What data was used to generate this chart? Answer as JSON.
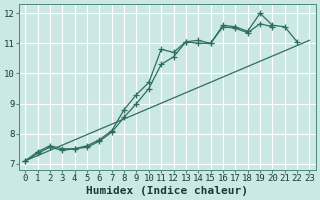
{
  "xlabel": "Humidex (Indice chaleur)",
  "bg_color": "#cce8e5",
  "grid_color": "#ffffff",
  "line_color": "#2e6e62",
  "xlim_min": -0.5,
  "xlim_max": 23.5,
  "ylim_min": 6.8,
  "ylim_max": 12.3,
  "xticks": [
    0,
    1,
    2,
    3,
    4,
    5,
    6,
    7,
    8,
    9,
    10,
    11,
    12,
    13,
    14,
    15,
    16,
    17,
    18,
    19,
    20,
    21,
    22,
    23
  ],
  "yticks": [
    7,
    8,
    9,
    10,
    11,
    12
  ],
  "line1_x": [
    0,
    1,
    2,
    3,
    4,
    5,
    6,
    7,
    8,
    9,
    10,
    11,
    12,
    13,
    14,
    15,
    16,
    17,
    18,
    19,
    20,
    21,
    22
  ],
  "line1_y": [
    7.1,
    7.4,
    7.6,
    7.5,
    7.5,
    7.6,
    7.8,
    8.1,
    8.8,
    9.3,
    9.7,
    10.8,
    10.7,
    11.05,
    11.1,
    11.0,
    11.6,
    11.55,
    11.4,
    12.0,
    11.6,
    11.55,
    11.05
  ],
  "line2_x": [
    0,
    1,
    2,
    3,
    4,
    5,
    6,
    7,
    8,
    9,
    10,
    11,
    12,
    13,
    14,
    15,
    16,
    17,
    18,
    19,
    20
  ],
  "line2_y": [
    7.1,
    7.35,
    7.55,
    7.45,
    7.5,
    7.55,
    7.75,
    8.05,
    8.55,
    9.0,
    9.5,
    10.3,
    10.55,
    11.05,
    11.0,
    11.0,
    11.55,
    11.5,
    11.35,
    11.65,
    11.55
  ],
  "line3_x": [
    0,
    23
  ],
  "line3_y": [
    7.1,
    11.1
  ],
  "linewidth": 0.9,
  "marker_size": 4,
  "font_size": 7,
  "xlabel_fontsize": 8,
  "tick_fontsize": 6.5
}
